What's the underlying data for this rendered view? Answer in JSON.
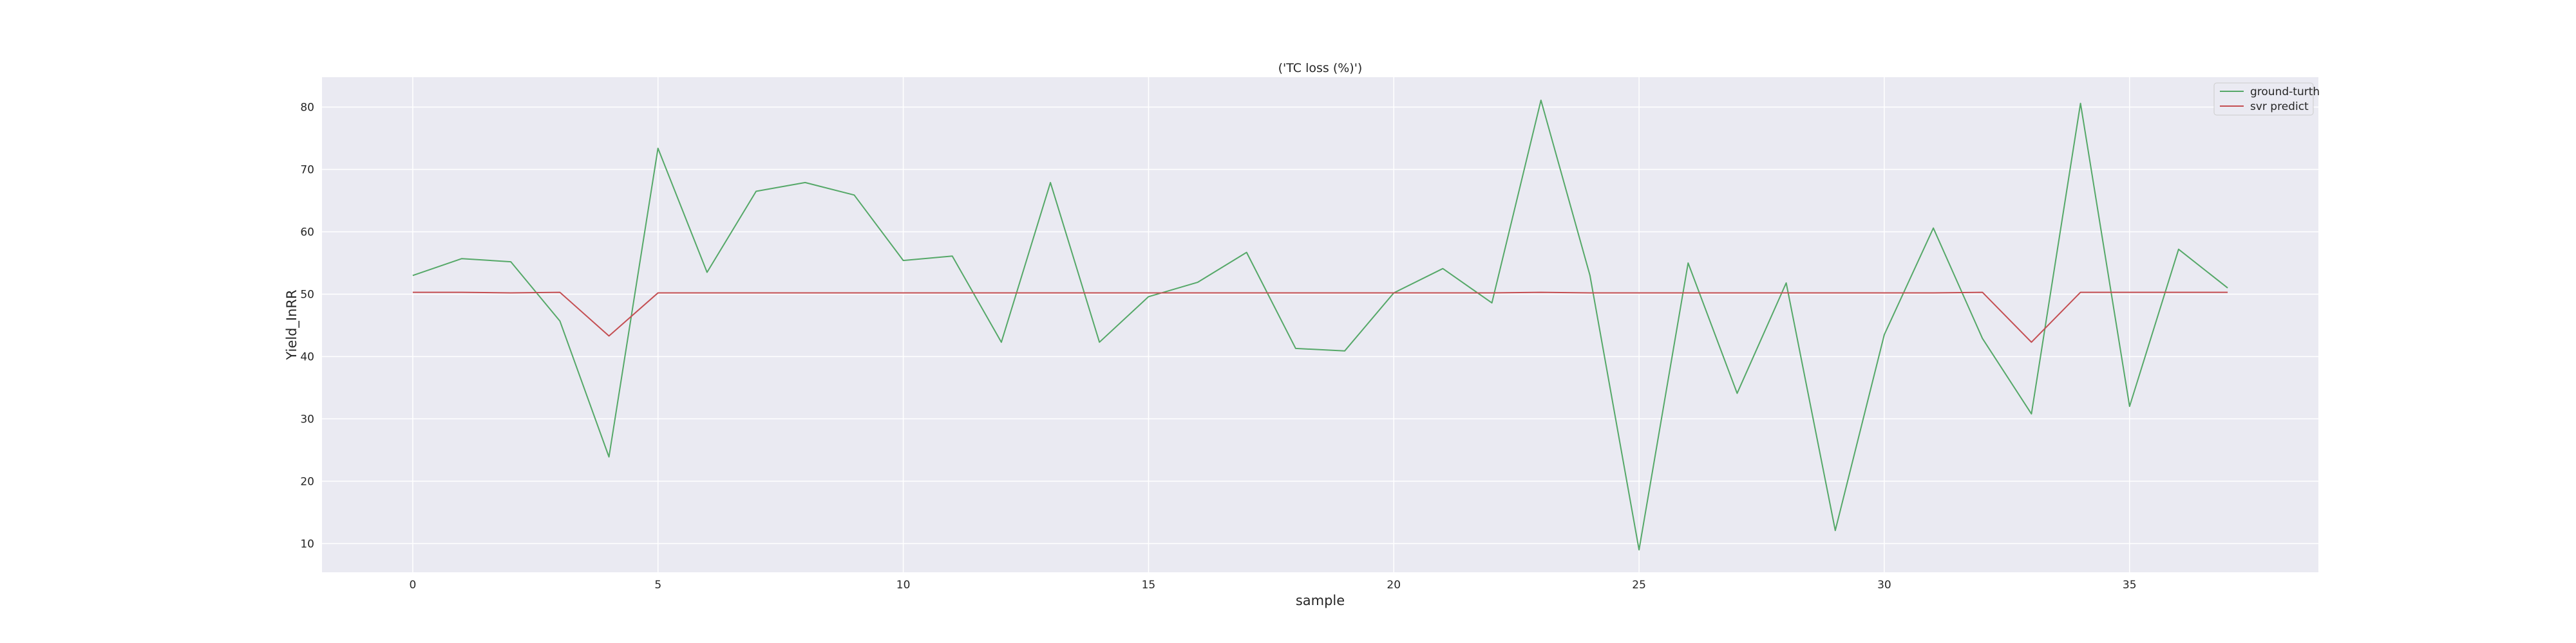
{
  "chart_data": {
    "type": "line",
    "title": "('TC loss (%)')",
    "xlabel": "sample",
    "ylabel": "Yield_InRR",
    "xlim": [
      -1.85,
      38.85
    ],
    "ylim": [
      5.4,
      84.8
    ],
    "xticks": [
      0,
      5,
      10,
      15,
      20,
      25,
      30,
      35
    ],
    "yticks": [
      10,
      20,
      30,
      40,
      50,
      60,
      70,
      80
    ],
    "grid": true,
    "legend_position": "top-right",
    "x": [
      0,
      1,
      2,
      3,
      4,
      5,
      6,
      7,
      8,
      9,
      10,
      11,
      12,
      13,
      14,
      15,
      16,
      17,
      18,
      19,
      20,
      21,
      22,
      23,
      24,
      25,
      26,
      27,
      28,
      29,
      30,
      31,
      32,
      33,
      34,
      35,
      36,
      37
    ],
    "series": [
      {
        "name": "ground-turth",
        "color": "#55a868",
        "values": [
          53.0,
          55.7,
          55.2,
          45.7,
          23.9,
          73.4,
          53.5,
          66.5,
          67.9,
          65.9,
          55.4,
          56.1,
          42.3,
          67.9,
          42.3,
          49.6,
          51.9,
          56.7,
          41.3,
          40.9,
          50.2,
          54.1,
          48.6,
          81.1,
          53.0,
          9.0,
          55.0,
          34.1,
          51.8,
          12.1,
          43.5,
          60.6,
          42.9,
          30.8,
          80.6,
          32.0,
          57.2,
          51.0
        ]
      },
      {
        "name": "svr predict",
        "color": "#c44e52",
        "values": [
          50.3,
          50.3,
          50.2,
          50.3,
          43.3,
          50.2,
          50.2,
          50.2,
          50.2,
          50.2,
          50.2,
          50.2,
          50.2,
          50.2,
          50.2,
          50.2,
          50.2,
          50.2,
          50.2,
          50.2,
          50.2,
          50.2,
          50.2,
          50.3,
          50.2,
          50.2,
          50.2,
          50.2,
          50.2,
          50.2,
          50.2,
          50.2,
          50.3,
          42.3,
          50.3,
          50.3,
          50.3,
          50.3
        ]
      }
    ]
  },
  "colors": {
    "plot_background": "#eaeaf2",
    "grid": "#ffffff"
  }
}
